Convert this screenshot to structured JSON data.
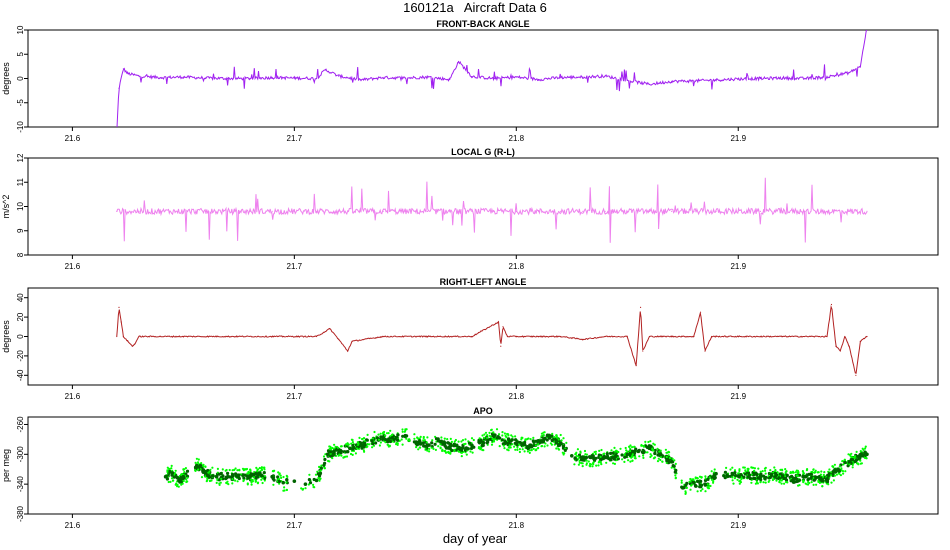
{
  "page": {
    "title": "160121a   Aircraft Data 6",
    "xlabel": "day of year"
  },
  "colors": {
    "front_back": "#a020f0",
    "local_g": "#ee82ee",
    "right_left": "#b22222",
    "apo_light": "#00ff00",
    "apo_dark": "#006400"
  },
  "chart_data": [
    {
      "type": "line",
      "title": "FRONT-BACK ANGLE",
      "xlabel": "",
      "ylabel": "degrees",
      "xlim": [
        21.58,
        21.99
      ],
      "ylim": [
        -10,
        10
      ],
      "xticks": [
        21.6,
        21.7,
        21.8,
        21.9
      ],
      "yticks": [
        -10,
        -5,
        0,
        5,
        10
      ],
      "series": [
        {
          "color": "front_back",
          "x": [
            21.62,
            21.621,
            21.623,
            21.625,
            21.63,
            21.64,
            21.65,
            21.66,
            21.67,
            21.68,
            21.69,
            21.7,
            21.71,
            21.714,
            21.72,
            21.73,
            21.74,
            21.75,
            21.76,
            21.77,
            21.774,
            21.78,
            21.79,
            21.8,
            21.81,
            21.82,
            21.83,
            21.84,
            21.85,
            21.86,
            21.87,
            21.88,
            21.89,
            21.9,
            21.91,
            21.92,
            21.93,
            21.94,
            21.95,
            21.955,
            21.958
          ],
          "y": [
            -11,
            -2,
            2,
            1,
            0.5,
            0.2,
            0.3,
            0.1,
            0,
            0,
            0.2,
            0.1,
            0,
            1.8,
            0.5,
            -0.3,
            0.2,
            0.1,
            0.3,
            -0.2,
            3.5,
            0.4,
            0,
            0.3,
            -0.2,
            0.2,
            0.3,
            0.5,
            -0.4,
            -1.2,
            -0.6,
            -0.5,
            -0.3,
            -0.1,
            0,
            0.1,
            0,
            0.3,
            1.2,
            2.5,
            10.5
          ]
        }
      ]
    },
    {
      "type": "line",
      "title": "LOCAL G (R-L)",
      "xlabel": "",
      "ylabel": "m/s^2",
      "xlim": [
        21.58,
        21.99
      ],
      "ylim": [
        8,
        12
      ],
      "xticks": [
        21.6,
        21.7,
        21.8,
        21.9
      ],
      "yticks": [
        8,
        9,
        10,
        11,
        12
      ],
      "series": [
        {
          "color": "local_g",
          "x": [
            21.62,
            21.63,
            21.64,
            21.65,
            21.66,
            21.67,
            21.68,
            21.69,
            21.7,
            21.71,
            21.72,
            21.73,
            21.74,
            21.75,
            21.76,
            21.77,
            21.78,
            21.79,
            21.8,
            21.81,
            21.82,
            21.83,
            21.84,
            21.85,
            21.86,
            21.87,
            21.88,
            21.89,
            21.9,
            21.91,
            21.92,
            21.93,
            21.94,
            21.95,
            21.958
          ],
          "y": [
            9.8,
            9.8,
            9.8,
            9.8,
            9.8,
            9.8,
            9.8,
            9.8,
            9.8,
            9.8,
            9.8,
            9.8,
            9.8,
            9.8,
            9.8,
            9.8,
            9.8,
            9.8,
            9.8,
            9.8,
            9.8,
            9.8,
            9.8,
            9.8,
            9.8,
            9.8,
            9.8,
            9.8,
            9.8,
            9.8,
            9.8,
            9.8,
            9.8,
            9.8,
            9.8
          ]
        }
      ]
    },
    {
      "type": "line",
      "title": "RIGHT-LEFT ANGLE",
      "xlabel": "",
      "ylabel": "degrees",
      "xlim": [
        21.58,
        21.99
      ],
      "ylim": [
        -50,
        50
      ],
      "xticks": [
        21.6,
        21.7,
        21.8,
        21.9
      ],
      "yticks": [
        -40,
        -20,
        0,
        20,
        40
      ],
      "series": [
        {
          "color": "right_left",
          "x": [
            21.62,
            21.621,
            21.622,
            21.623,
            21.625,
            21.627,
            21.628,
            21.63,
            21.65,
            21.67,
            21.69,
            21.71,
            21.716,
            21.72,
            21.724,
            21.726,
            21.74,
            21.76,
            21.78,
            21.792,
            21.793,
            21.794,
            21.796,
            21.8,
            21.81,
            21.82,
            21.83,
            21.84,
            21.85,
            21.854,
            21.856,
            21.857,
            21.86,
            21.87,
            21.88,
            21.883,
            21.885,
            21.888,
            21.89,
            21.9,
            21.92,
            21.94,
            21.942,
            21.944,
            21.946,
            21.948,
            21.95,
            21.953,
            21.955,
            21.958
          ],
          "y": [
            0,
            30,
            15,
            0,
            -5,
            -10,
            -8,
            0,
            0,
            0,
            0,
            0,
            8,
            -3,
            -15,
            -5,
            0,
            0,
            0,
            15,
            -10,
            10,
            0,
            0,
            0,
            0,
            -3,
            0,
            0,
            -30,
            30,
            -15,
            0,
            0,
            0,
            25,
            -15,
            0,
            0,
            0,
            0,
            0,
            33,
            -10,
            -15,
            0,
            -10,
            -40,
            -5,
            0
          ]
        }
      ]
    },
    {
      "type": "scatter",
      "title": "APO",
      "xlabel": "day of year",
      "ylabel": "per meg",
      "xlim": [
        21.58,
        21.99
      ],
      "ylim": [
        -380,
        -250
      ],
      "xticks": [
        21.6,
        21.7,
        21.8,
        21.9
      ],
      "yticks": [
        -380,
        -340,
        -300,
        -260
      ],
      "series": [
        {
          "color": "apo_dark",
          "x": [
            21.642,
            21.645,
            21.648,
            21.65,
            21.656,
            21.66,
            21.665,
            21.67,
            21.675,
            21.68,
            21.685,
            21.69,
            21.695,
            21.7,
            21.705,
            21.71,
            21.715,
            21.72,
            21.725,
            21.73,
            21.735,
            21.74,
            21.745,
            21.75,
            21.755,
            21.76,
            21.765,
            21.77,
            21.775,
            21.78,
            21.785,
            21.79,
            21.795,
            21.8,
            21.805,
            21.81,
            21.815,
            21.82,
            21.825,
            21.83,
            21.835,
            21.84,
            21.845,
            21.85,
            21.855,
            21.86,
            21.865,
            21.87,
            21.875,
            21.88,
            21.885,
            21.89,
            21.895,
            21.9,
            21.905,
            21.91,
            21.915,
            21.92,
            21.925,
            21.93,
            21.935,
            21.94,
            21.945,
            21.95,
            21.955,
            21.958
          ],
          "y": [
            -330,
            -325,
            -335,
            -330,
            -315,
            -325,
            -330,
            -330,
            -328,
            -330,
            -328,
            -330,
            -338,
            -336,
            -340,
            -335,
            -300,
            -295,
            -292,
            -288,
            -282,
            -278,
            -280,
            -275,
            -285,
            -288,
            -282,
            -290,
            -292,
            -288,
            -284,
            -275,
            -283,
            -285,
            -290,
            -282,
            -278,
            -285,
            -302,
            -305,
            -306,
            -304,
            -302,
            -300,
            -296,
            -292,
            -300,
            -310,
            -345,
            -338,
            -340,
            -326,
            -328,
            -329,
            -328,
            -330,
            -327,
            -329,
            -333,
            -330,
            -331,
            -333,
            -320,
            -310,
            -302,
            -300
          ]
        }
      ]
    }
  ]
}
